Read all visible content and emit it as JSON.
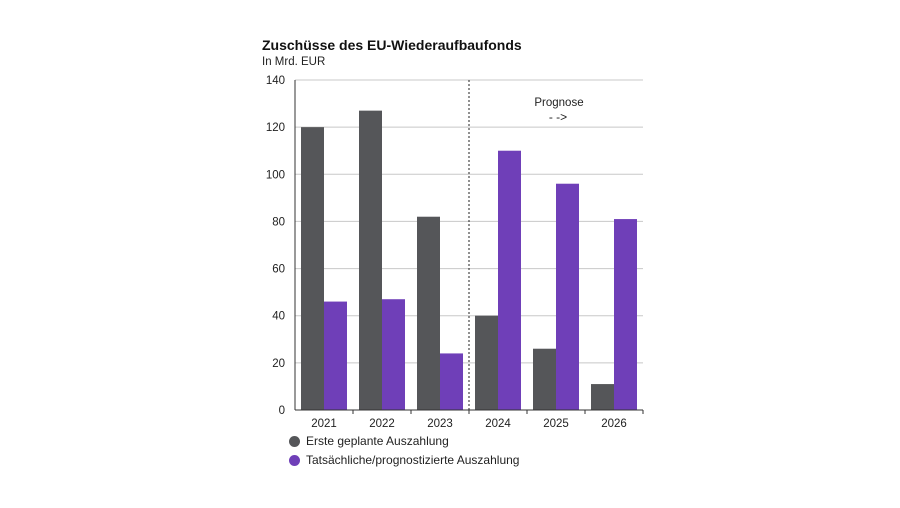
{
  "chart_data": {
    "type": "bar",
    "title": "Zuschüsse des EU-Wiederaufbaufonds",
    "subtitle": "In Mrd. EUR",
    "categories": [
      "2021",
      "2022",
      "2023",
      "2024",
      "2025",
      "2026"
    ],
    "series": [
      {
        "name": "Erste geplante Auszahlung",
        "color": "#555659",
        "values": [
          120,
          127,
          82,
          40,
          26,
          11
        ]
      },
      {
        "name": "Tatsächliche/prognostizierte Auszahlung",
        "color": "#6f3fb8",
        "values": [
          46,
          47,
          24,
          110,
          96,
          81
        ]
      }
    ],
    "ylim": [
      0,
      140
    ],
    "yticks": [
      0,
      20,
      40,
      60,
      80,
      100,
      120,
      140
    ],
    "grid": true,
    "annotation": {
      "text": "Prognose",
      "arrow": "- ->",
      "from_category": "2024"
    },
    "legend_position": "bottom-left"
  }
}
